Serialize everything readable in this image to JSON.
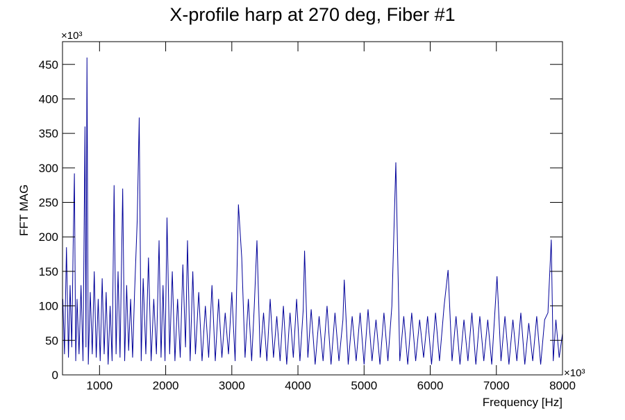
{
  "chart_data": {
    "type": "line",
    "title": "X-profile harp at 270 deg, Fiber #1",
    "x_label": "Frequency [Hz]",
    "y_label": "FFT MAG",
    "x_multiplier": "×10³",
    "y_multiplier": "×10³",
    "xlim": [
      440,
      8000
    ],
    "ylim": [
      0,
      483
    ],
    "xticks": [
      1000,
      2000,
      3000,
      4000,
      5000,
      6000,
      7000,
      8000
    ],
    "yticks": [
      0,
      50,
      100,
      150,
      200,
      250,
      300,
      350,
      400,
      450
    ],
    "grid": false,
    "series": [
      {
        "color": "#000099",
        "x": [
          445,
          470,
          500,
          530,
          555,
          580,
          600,
          620,
          640,
          660,
          690,
          720,
          750,
          780,
          795,
          810,
          830,
          860,
          890,
          920,
          950,
          980,
          1010,
          1040,
          1070,
          1100,
          1130,
          1160,
          1190,
          1220,
          1250,
          1280,
          1310,
          1350,
          1380,
          1410,
          1440,
          1470,
          1500,
          1530,
          1570,
          1600,
          1630,
          1660,
          1700,
          1740,
          1780,
          1820,
          1860,
          1900,
          1930,
          1960,
          1990,
          2020,
          2060,
          2100,
          2140,
          2180,
          2220,
          2260,
          2300,
          2330,
          2370,
          2410,
          2450,
          2500,
          2550,
          2600,
          2650,
          2700,
          2750,
          2800,
          2850,
          2900,
          2950,
          3000,
          3050,
          3100,
          3150,
          3200,
          3250,
          3300,
          3340,
          3380,
          3430,
          3480,
          3530,
          3580,
          3630,
          3680,
          3730,
          3780,
          3830,
          3880,
          3930,
          3980,
          4030,
          4080,
          4100,
          4150,
          4200,
          4260,
          4320,
          4380,
          4440,
          4500,
          4560,
          4620,
          4680,
          4700,
          4760,
          4820,
          4880,
          4940,
          5000,
          5060,
          5120,
          5180,
          5240,
          5300,
          5360,
          5420,
          5480,
          5540,
          5600,
          5660,
          5720,
          5780,
          5840,
          5900,
          5960,
          6020,
          6080,
          6140,
          6210,
          6270,
          6330,
          6390,
          6450,
          6510,
          6570,
          6630,
          6690,
          6750,
          6810,
          6870,
          6930,
          7010,
          7070,
          7130,
          7190,
          7250,
          7310,
          7370,
          7430,
          7490,
          7550,
          7610,
          7670,
          7730,
          7780,
          7830,
          7860,
          7900,
          7950,
          8000
        ],
        "values": [
          110,
          30,
          185,
          25,
          130,
          40,
          180,
          292,
          20,
          110,
          30,
          130,
          20,
          360,
          40,
          460,
          15,
          120,
          30,
          150,
          25,
          110,
          20,
          140,
          30,
          120,
          15,
          100,
          20,
          275,
          30,
          150,
          25,
          270,
          20,
          130,
          35,
          110,
          25,
          120,
          225,
          373,
          20,
          140,
          30,
          170,
          20,
          110,
          30,
          195,
          25,
          130,
          20,
          228,
          30,
          150,
          20,
          110,
          25,
          160,
          40,
          195,
          20,
          150,
          30,
          120,
          20,
          100,
          25,
          130,
          20,
          110,
          25,
          90,
          30,
          120,
          20,
          247,
          170,
          25,
          110,
          20,
          100,
          195,
          25,
          90,
          20,
          110,
          25,
          85,
          20,
          100,
          15,
          90,
          25,
          110,
          20,
          95,
          180,
          25,
          95,
          15,
          85,
          20,
          100,
          15,
          90,
          20,
          80,
          138,
          15,
          85,
          20,
          90,
          15,
          95,
          20,
          80,
          15,
          90,
          20,
          100,
          308,
          20,
          85,
          15,
          90,
          20,
          80,
          25,
          85,
          15,
          90,
          20,
          100,
          152,
          20,
          85,
          15,
          80,
          20,
          90,
          15,
          85,
          20,
          80,
          15,
          143,
          20,
          85,
          15,
          80,
          20,
          90,
          15,
          75,
          20,
          85,
          15,
          80,
          90,
          196,
          20,
          80,
          25,
          60
        ]
      }
    ]
  }
}
